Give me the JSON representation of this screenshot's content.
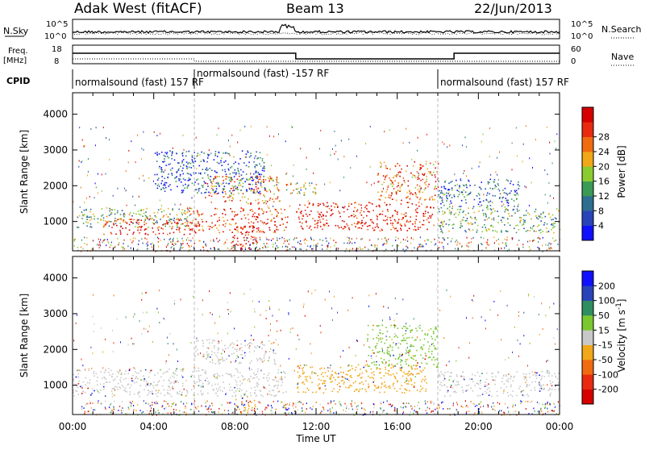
{
  "header": {
    "station": "Adak West (fitACF)",
    "beam": "Beam 13",
    "date": "22/Jun/2013"
  },
  "nsky_panel": {
    "left_label": "N.Sky",
    "right_label": "N.Search",
    "left_ticks": [
      "10^5",
      "10^0"
    ],
    "right_ticks": [
      "10^5",
      "10^0"
    ]
  },
  "freq_panel": {
    "left_label_line1": "Freq.",
    "left_label_line2": "[MHz]",
    "right_label": "Nave",
    "left_ticks": [
      "18",
      "8"
    ],
    "right_ticks": [
      "60",
      "0"
    ]
  },
  "cpid_panel": {
    "label": "CPID",
    "segments": [
      {
        "text": "normalsound (fast) 157 RF",
        "start_hour": 0,
        "end_hour": 6
      },
      {
        "text": "normalsound (fast) -157 RF",
        "start_hour": 6,
        "end_hour": 18
      },
      {
        "text": "normalsound (fast) 157 RF",
        "start_hour": 18,
        "end_hour": 24
      }
    ]
  },
  "time_axis": {
    "xlabel": "Time UT",
    "tick_labels": [
      "00:00",
      "04:00",
      "08:00",
      "12:00",
      "16:00",
      "20:00",
      "00:00"
    ],
    "tick_hours": [
      0,
      4,
      8,
      12,
      16,
      20,
      24
    ]
  },
  "chart_data": [
    {
      "type": "heatmap",
      "name": "power",
      "xlabel": "Time UT",
      "ylabel": "Slant Range [km]",
      "xlim": [
        0,
        24
      ],
      "ylim": [
        180,
        4600
      ],
      "y_ticks": [
        1000,
        2000,
        3000,
        4000
      ],
      "colorbar_label": "Power [dB]",
      "colorbar_ticks": [
        "4",
        "8",
        "12",
        "16",
        "20",
        "24",
        "28"
      ],
      "colorbar_colors": [
        "#1010ff",
        "#2844b8",
        "#2e6e8e",
        "#3a9a56",
        "#8acc30",
        "#f0a818",
        "#f06a10",
        "#e82a10",
        "#d60000"
      ],
      "scatter_regions": [
        {
          "t0": 0.2,
          "t1": 6.0,
          "r0": 850,
          "r1": 1400,
          "level": 0.45
        },
        {
          "t0": 1.5,
          "t1": 6.0,
          "r0": 650,
          "r1": 1100,
          "level": 0.9
        },
        {
          "t0": 5.5,
          "t1": 10.6,
          "r0": 700,
          "r1": 1400,
          "level": 0.85
        },
        {
          "t0": 7.8,
          "t1": 9.2,
          "r0": 200,
          "r1": 900,
          "level": 0.95
        },
        {
          "t0": 6.5,
          "t1": 10.2,
          "r0": 1500,
          "r1": 2300,
          "level": 0.7
        },
        {
          "t0": 10.3,
          "t1": 12.0,
          "r0": 1750,
          "r1": 2100,
          "level": 0.55
        },
        {
          "t0": 11.0,
          "t1": 17.8,
          "r0": 750,
          "r1": 1550,
          "level": 0.9
        },
        {
          "t0": 15.0,
          "t1": 18.0,
          "r0": 1600,
          "r1": 2700,
          "level": 0.75
        },
        {
          "t0": 18.0,
          "t1": 24.0,
          "r0": 700,
          "r1": 1400,
          "level": 0.4
        },
        {
          "t0": 18.0,
          "t1": 22.0,
          "r0": 1400,
          "r1": 2200,
          "level": 0.25
        },
        {
          "t0": 4.0,
          "t1": 9.5,
          "r0": 1800,
          "r1": 3000,
          "level": 0.2
        }
      ]
    },
    {
      "type": "heatmap",
      "name": "velocity",
      "xlabel": "Time UT",
      "ylabel": "Slant Range [km]",
      "xlim": [
        0,
        24
      ],
      "ylim": [
        180,
        4600
      ],
      "y_ticks": [
        1000,
        2000,
        3000,
        4000
      ],
      "colorbar_label": "Velocity [m s^-1]",
      "colorbar_ticks": [
        "200",
        "100",
        "50",
        "15",
        "-15",
        "-50",
        "-100",
        "-200"
      ],
      "colorbar_colors": [
        "#1010ff",
        "#2844b8",
        "#2e8e60",
        "#7ac830",
        "#c8c8c8",
        "#f0a818",
        "#f06a10",
        "#e82a10",
        "#d60000"
      ],
      "scatter_regions": [
        {
          "t0": 0.0,
          "t1": 10.5,
          "r0": 700,
          "r1": 1500,
          "kind": "gray"
        },
        {
          "t0": 6.0,
          "t1": 10.0,
          "r0": 1600,
          "r1": 2300,
          "kind": "gray"
        },
        {
          "t0": 11.0,
          "t1": 17.5,
          "r0": 800,
          "r1": 1600,
          "kind": "orange"
        },
        {
          "t0": 14.5,
          "t1": 18.0,
          "r0": 1500,
          "r1": 2700,
          "kind": "green"
        },
        {
          "t0": 18.0,
          "t1": 24.0,
          "r0": 700,
          "r1": 1400,
          "kind": "gray"
        },
        {
          "t0": 8.0,
          "t1": 9.0,
          "r0": 200,
          "r1": 700,
          "kind": "orange"
        }
      ]
    }
  ]
}
